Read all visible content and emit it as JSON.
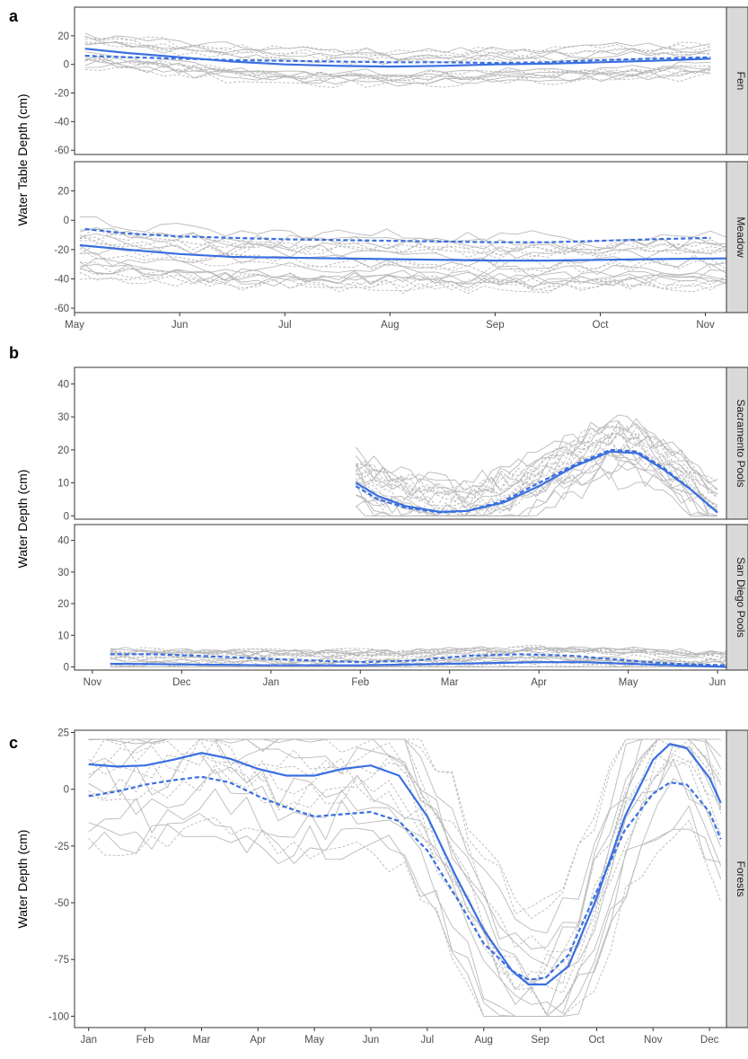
{
  "colors": {
    "smooth": "#3a6fe0",
    "individual": "#b9b9b9",
    "strip_bg": "#d9d9d9",
    "frame": "#333333"
  },
  "chart_data": [
    {
      "type": "line",
      "panel_tag": "a",
      "ylabel": "Water Table Depth (cm)",
      "x": [
        "May",
        "Jun",
        "Jul",
        "Aug",
        "Sep",
        "Oct",
        "Nov"
      ],
      "xlim": [
        0,
        6.2
      ],
      "ylim": [
        -63,
        40
      ],
      "yticks": [
        20,
        0,
        -20,
        -40,
        -60
      ],
      "facets": [
        {
          "strip": "Fen",
          "series": [
            {
              "style": "solid",
              "role": "smoothed",
              "values": [
                [
                  0.1,
                  11
                ],
                [
                  0.5,
                  8
                ],
                [
                  1,
                  5
                ],
                [
                  1.5,
                  2
                ],
                [
                  2,
                  0
                ],
                [
                  2.5,
                  -1
                ],
                [
                  3,
                  -1.5
                ],
                [
                  3.5,
                  -1
                ],
                [
                  4,
                  0
                ],
                [
                  4.5,
                  0.5
                ],
                [
                  5,
                  1.5
                ],
                [
                  5.5,
                  2.5
                ],
                [
                  6.05,
                  4
                ]
              ]
            },
            {
              "style": "dashed",
              "role": "smoothed",
              "values": [
                [
                  0.1,
                  6
                ],
                [
                  0.5,
                  5
                ],
                [
                  1,
                  4
                ],
                [
                  1.5,
                  3
                ],
                [
                  2,
                  2.5
                ],
                [
                  2.5,
                  2
                ],
                [
                  3,
                  1.5
                ],
                [
                  3.5,
                  1.5
                ],
                [
                  4,
                  1
                ],
                [
                  4.5,
                  1.5
                ],
                [
                  5,
                  3
                ],
                [
                  5.5,
                  4
                ],
                [
                  6.05,
                  5
                ]
              ]
            }
          ],
          "background_spread": {
            "upper": 30,
            "lower": -12,
            "min": -20,
            "lines": 16
          }
        },
        {
          "strip": "Meadow",
          "series": [
            {
              "style": "solid",
              "role": "smoothed",
              "values": [
                [
                  0.05,
                  -17
                ],
                [
                  0.5,
                  -20
                ],
                [
                  1,
                  -23
                ],
                [
                  1.5,
                  -25
                ],
                [
                  2,
                  -25.5
                ],
                [
                  2.5,
                  -26
                ],
                [
                  3,
                  -26.5
                ],
                [
                  3.5,
                  -27
                ],
                [
                  4,
                  -27.5
                ],
                [
                  4.5,
                  -27.5
                ],
                [
                  5,
                  -27
                ],
                [
                  5.5,
                  -26.5
                ],
                [
                  6.2,
                  -26
                ]
              ]
            },
            {
              "style": "dashed",
              "role": "smoothed",
              "values": [
                [
                  0.1,
                  -6
                ],
                [
                  0.5,
                  -9
                ],
                [
                  1,
                  -11
                ],
                [
                  1.5,
                  -12
                ],
                [
                  2,
                  -13
                ],
                [
                  2.5,
                  -13.5
                ],
                [
                  3,
                  -14
                ],
                [
                  3.5,
                  -14.5
                ],
                [
                  4,
                  -15
                ],
                [
                  4.5,
                  -15
                ],
                [
                  5,
                  -14
                ],
                [
                  5.5,
                  -13
                ],
                [
                  6.05,
                  -12
                ]
              ]
            }
          ],
          "background_spread": {
            "upper": 8,
            "lower": -55,
            "min": -58,
            "lines": 20
          }
        }
      ]
    },
    {
      "type": "line",
      "panel_tag": "b",
      "ylabel": "Water Depth (cm)",
      "x": [
        "Nov",
        "Dec",
        "Jan",
        "Feb",
        "Mar",
        "Apr",
        "May",
        "Jun"
      ],
      "xlim": [
        -0.2,
        7.1
      ],
      "ylim": [
        -1,
        45
      ],
      "yticks": [
        0,
        10,
        20,
        30,
        40
      ],
      "facets": [
        {
          "strip": "Sacramento Pools",
          "series": [
            {
              "style": "solid",
              "role": "smoothed",
              "values": [
                [
                  2.95,
                  10
                ],
                [
                  3.2,
                  6
                ],
                [
                  3.5,
                  3
                ],
                [
                  3.9,
                  1.2
                ],
                [
                  4.2,
                  1.5
                ],
                [
                  4.6,
                  4
                ],
                [
                  5.0,
                  9
                ],
                [
                  5.4,
                  15
                ],
                [
                  5.8,
                  19.5
                ],
                [
                  6.1,
                  19
                ],
                [
                  6.4,
                  14
                ],
                [
                  6.7,
                  8
                ],
                [
                  7.0,
                  1
                ]
              ]
            },
            {
              "style": "dashed",
              "role": "smoothed",
              "values": [
                [
                  2.95,
                  9
                ],
                [
                  3.2,
                  5
                ],
                [
                  3.5,
                  2.5
                ],
                [
                  3.9,
                  1
                ],
                [
                  4.2,
                  1.5
                ],
                [
                  4.6,
                  4.5
                ],
                [
                  5.0,
                  10
                ],
                [
                  5.4,
                  15.5
                ],
                [
                  5.8,
                  20
                ],
                [
                  6.1,
                  19.5
                ],
                [
                  6.4,
                  14.5
                ],
                [
                  6.7,
                  8
                ],
                [
                  7.0,
                  1
                ]
              ]
            }
          ],
          "background_spread": {
            "upper": 38,
            "lower": 0,
            "min": 0,
            "lines": 22
          }
        },
        {
          "strip": "San Diego Pools",
          "series": [
            {
              "style": "solid",
              "role": "smoothed",
              "values": [
                [
                  0.2,
                  1
                ],
                [
                  1,
                  0.8
                ],
                [
                  2,
                  0.5
                ],
                [
                  3,
                  0.5
                ],
                [
                  4,
                  1
                ],
                [
                  5,
                  1.5
                ],
                [
                  5.5,
                  1.5
                ],
                [
                  6,
                  1
                ],
                [
                  6.5,
                  0.5
                ],
                [
                  7.1,
                  0
                ]
              ]
            },
            {
              "style": "dashed",
              "role": "smoothed",
              "values": [
                [
                  0.2,
                  4
                ],
                [
                  0.7,
                  4
                ],
                [
                  1.2,
                  3.5
                ],
                [
                  2,
                  2.5
                ],
                [
                  3,
                  1.5
                ],
                [
                  3.6,
                  2
                ],
                [
                  4.2,
                  3.5
                ],
                [
                  4.8,
                  4
                ],
                [
                  5.4,
                  3.5
                ],
                [
                  6,
                  2
                ],
                [
                  6.5,
                  1
                ],
                [
                  7.1,
                  0.5
                ]
              ]
            }
          ],
          "background_spread": {
            "upper": 15,
            "lower": 0,
            "min": 0,
            "lines": 22
          }
        }
      ]
    },
    {
      "type": "line",
      "panel_tag": "c",
      "ylabel": "Water Depth (cm)",
      "x": [
        "Jan",
        "Feb",
        "Mar",
        "Apr",
        "May",
        "Jun",
        "Jul",
        "Aug",
        "Sep",
        "Oct",
        "Nov",
        "Dec"
      ],
      "xlim": [
        -0.25,
        11.3
      ],
      "ylim": [
        -105,
        26
      ],
      "yticks": [
        25,
        0,
        -25,
        -50,
        -75,
        -100
      ],
      "facets": [
        {
          "strip": "Forests",
          "series": [
            {
              "style": "solid",
              "role": "smoothed",
              "values": [
                [
                  0,
                  11
                ],
                [
                  0.5,
                  10
                ],
                [
                  1,
                  10.5
                ],
                [
                  1.5,
                  13
                ],
                [
                  2,
                  16
                ],
                [
                  2.5,
                  13.5
                ],
                [
                  3,
                  9
                ],
                [
                  3.5,
                  6
                ],
                [
                  4,
                  6
                ],
                [
                  4.5,
                  9
                ],
                [
                  5,
                  10.5
                ],
                [
                  5.5,
                  6
                ],
                [
                  6,
                  -12
                ],
                [
                  6.5,
                  -38
                ],
                [
                  7,
                  -62
                ],
                [
                  7.5,
                  -80
                ],
                [
                  7.8,
                  -86
                ],
                [
                  8.1,
                  -86
                ],
                [
                  8.5,
                  -78
                ],
                [
                  9,
                  -48
                ],
                [
                  9.5,
                  -12
                ],
                [
                  10,
                  13
                ],
                [
                  10.3,
                  20
                ],
                [
                  10.6,
                  18
                ],
                [
                  11,
                  5
                ],
                [
                  11.2,
                  -6
                ]
              ]
            },
            {
              "style": "dashed",
              "role": "smoothed",
              "values": [
                [
                  0,
                  -3
                ],
                [
                  0.5,
                  -1
                ],
                [
                  1,
                  2
                ],
                [
                  1.5,
                  4
                ],
                [
                  2,
                  5.5
                ],
                [
                  2.5,
                  3
                ],
                [
                  3,
                  -3
                ],
                [
                  3.5,
                  -8
                ],
                [
                  4,
                  -12
                ],
                [
                  4.5,
                  -11
                ],
                [
                  5,
                  -10
                ],
                [
                  5.5,
                  -14
                ],
                [
                  6,
                  -27
                ],
                [
                  6.5,
                  -47
                ],
                [
                  7,
                  -68
                ],
                [
                  7.5,
                  -80
                ],
                [
                  7.8,
                  -84
                ],
                [
                  8.1,
                  -83
                ],
                [
                  8.5,
                  -73
                ],
                [
                  9,
                  -45
                ],
                [
                  9.5,
                  -18
                ],
                [
                  10,
                  -2
                ],
                [
                  10.3,
                  3
                ],
                [
                  10.6,
                  2
                ],
                [
                  11,
                  -10
                ],
                [
                  11.2,
                  -22
                ]
              ]
            }
          ],
          "background_spread": {
            "upper": 18,
            "lower": -100,
            "min": -100,
            "lines": 18
          }
        }
      ]
    }
  ]
}
